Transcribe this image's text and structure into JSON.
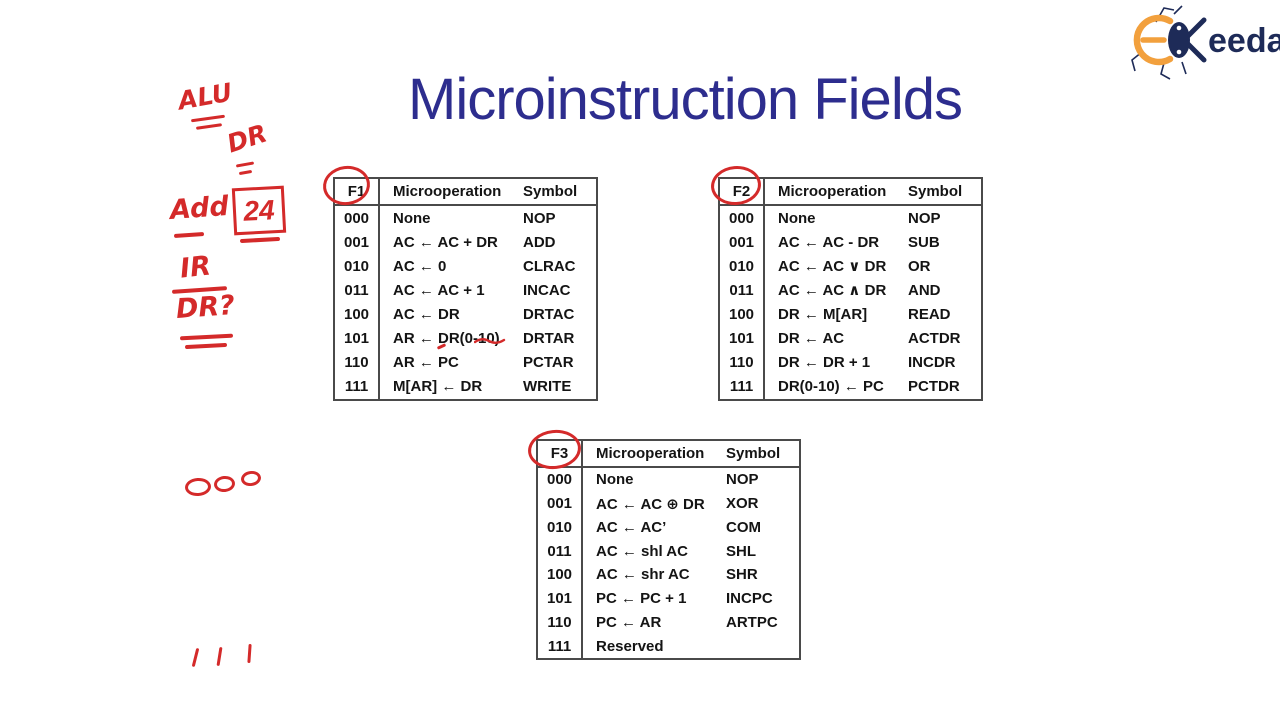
{
  "title": "Microinstruction Fields",
  "logo": {
    "brand_rest": "eeda"
  },
  "colors": {
    "title": "#2d2d8e",
    "ink": "#d42a2a",
    "table_border": "#4a4a4a",
    "logo_navy": "#1e2b58",
    "logo_orange": "#f2a03d"
  },
  "tables": [
    {
      "field": "F1",
      "col_op": "Microoperation",
      "col_sym": "Symbol",
      "rows": [
        {
          "code": "000",
          "op": "None",
          "sym": "NOP"
        },
        {
          "code": "001",
          "op": "AC ← AC + DR",
          "sym": "ADD"
        },
        {
          "code": "010",
          "op": "AC ← 0",
          "sym": "CLRAC"
        },
        {
          "code": "011",
          "op": "AC ← AC + 1",
          "sym": "INCAC"
        },
        {
          "code": "100",
          "op": "AC ← DR",
          "sym": "DRTAC"
        },
        {
          "code": "101",
          "op": "AR ← DR(0-10)",
          "sym": "DRTAR"
        },
        {
          "code": "110",
          "op": "AR ← PC",
          "sym": "PCTAR"
        },
        {
          "code": "111",
          "op": "M[AR] ← DR",
          "sym": "WRITE"
        }
      ]
    },
    {
      "field": "F2",
      "col_op": "Microoperation",
      "col_sym": "Symbol",
      "rows": [
        {
          "code": "000",
          "op": "None",
          "sym": "NOP"
        },
        {
          "code": "001",
          "op": "AC ← AC - DR",
          "sym": "SUB"
        },
        {
          "code": "010",
          "op": "AC ← AC ∨ DR",
          "sym": "OR"
        },
        {
          "code": "011",
          "op": "AC ← AC ∧ DR",
          "sym": "AND"
        },
        {
          "code": "100",
          "op": "DR ← M[AR]",
          "sym": "READ"
        },
        {
          "code": "101",
          "op": "DR ← AC",
          "sym": "ACTDR"
        },
        {
          "code": "110",
          "op": "DR ← DR + 1",
          "sym": "INCDR"
        },
        {
          "code": "111",
          "op": "DR(0-10) ← PC",
          "sym": "PCTDR"
        }
      ]
    },
    {
      "field": "F3",
      "col_op": "Microoperation",
      "col_sym": "Symbol",
      "rows": [
        {
          "code": "000",
          "op": "None",
          "sym": "NOP"
        },
        {
          "code": "001",
          "op": "AC ← AC ⊕ DR",
          "sym": "XOR"
        },
        {
          "code": "010",
          "op": "AC ← AC’",
          "sym": "COM"
        },
        {
          "code": "011",
          "op": "AC ← shl AC",
          "sym": "SHL"
        },
        {
          "code": "100",
          "op": "AC ← shr AC",
          "sym": "SHR"
        },
        {
          "code": "101",
          "op": "PC ← PC + 1",
          "sym": "INCPC"
        },
        {
          "code": "110",
          "op": "PC ← AR",
          "sym": "ARTPC"
        },
        {
          "code": "111",
          "op": "Reserved",
          "sym": ""
        }
      ]
    }
  ],
  "annotations": {
    "alu": "ALU",
    "dr": "DR",
    "add": "Add",
    "boxed_value": "24",
    "ir": "IR",
    "dr_question": "DR?"
  }
}
